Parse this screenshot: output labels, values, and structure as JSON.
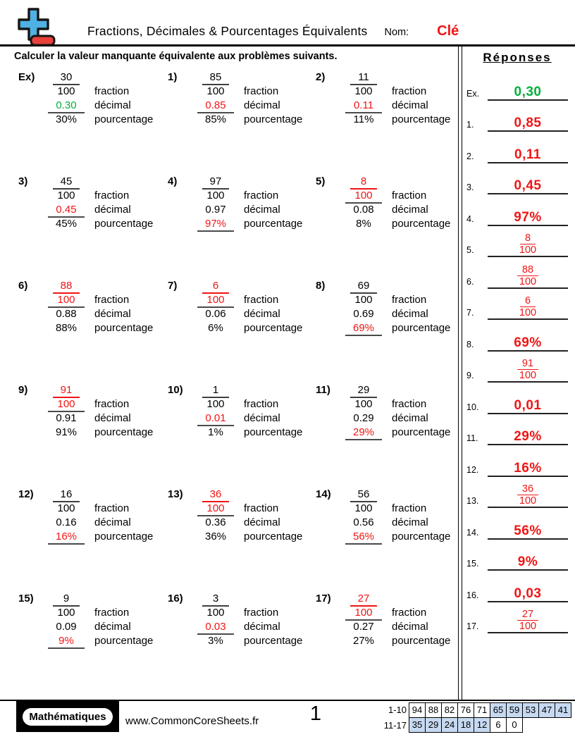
{
  "header": {
    "title": "Fractions, Décimales & Pourcentages Équivalents",
    "name_label": "Nom:",
    "name_value": "Clé"
  },
  "instruction": "Calculer la valeur manquante équivalente aux problèmes suivants.",
  "labels": {
    "fraction": "fraction",
    "decimal": "décimal",
    "percent": "pourcentage"
  },
  "colors": {
    "answer_red": "#f01515",
    "example_green": "#00b03a",
    "table_shade": "#c6d9f1",
    "logo_blue": "#4fb0e3",
    "logo_red": "#e8403a"
  },
  "problems": [
    {
      "label": "Ex)",
      "numerator": "30",
      "denominator": "100",
      "decimal": "0.30",
      "percent": "30%",
      "missing": "decimal",
      "answer_color": "green"
    },
    {
      "label": "1)",
      "numerator": "85",
      "denominator": "100",
      "decimal": "0.85",
      "percent": "85%",
      "missing": "decimal",
      "answer_color": "red"
    },
    {
      "label": "2)",
      "numerator": "11",
      "denominator": "100",
      "decimal": "0.11",
      "percent": "11%",
      "missing": "decimal",
      "answer_color": "red"
    },
    {
      "label": "3)",
      "numerator": "45",
      "denominator": "100",
      "decimal": "0.45",
      "percent": "45%",
      "missing": "decimal",
      "answer_color": "red"
    },
    {
      "label": "4)",
      "numerator": "97",
      "denominator": "100",
      "decimal": "0.97",
      "percent": "97%",
      "missing": "percent",
      "answer_color": "red"
    },
    {
      "label": "5)",
      "numerator": "8",
      "denominator": "100",
      "decimal": "0.08",
      "percent": "8%",
      "missing": "fraction",
      "answer_color": "red"
    },
    {
      "label": "6)",
      "numerator": "88",
      "denominator": "100",
      "decimal": "0.88",
      "percent": "88%",
      "missing": "fraction",
      "answer_color": "red"
    },
    {
      "label": "7)",
      "numerator": "6",
      "denominator": "100",
      "decimal": "0.06",
      "percent": "6%",
      "missing": "fraction",
      "answer_color": "red"
    },
    {
      "label": "8)",
      "numerator": "69",
      "denominator": "100",
      "decimal": "0.69",
      "percent": "69%",
      "missing": "percent",
      "answer_color": "red"
    },
    {
      "label": "9)",
      "numerator": "91",
      "denominator": "100",
      "decimal": "0.91",
      "percent": "91%",
      "missing": "fraction",
      "answer_color": "red"
    },
    {
      "label": "10)",
      "numerator": "1",
      "denominator": "100",
      "decimal": "0.01",
      "percent": "1%",
      "missing": "decimal",
      "answer_color": "red"
    },
    {
      "label": "11)",
      "numerator": "29",
      "denominator": "100",
      "decimal": "0.29",
      "percent": "29%",
      "missing": "percent",
      "answer_color": "red"
    },
    {
      "label": "12)",
      "numerator": "16",
      "denominator": "100",
      "decimal": "0.16",
      "percent": "16%",
      "missing": "percent",
      "answer_color": "red"
    },
    {
      "label": "13)",
      "numerator": "36",
      "denominator": "100",
      "decimal": "0.36",
      "percent": "36%",
      "missing": "fraction",
      "answer_color": "red"
    },
    {
      "label": "14)",
      "numerator": "56",
      "denominator": "100",
      "decimal": "0.56",
      "percent": "56%",
      "missing": "percent",
      "answer_color": "red"
    },
    {
      "label": "15)",
      "numerator": "9",
      "denominator": "100",
      "decimal": "0.09",
      "percent": "9%",
      "missing": "percent",
      "answer_color": "red"
    },
    {
      "label": "16)",
      "numerator": "3",
      "denominator": "100",
      "decimal": "0.03",
      "percent": "3%",
      "missing": "decimal",
      "answer_color": "red"
    },
    {
      "label": "17)",
      "numerator": "27",
      "denominator": "100",
      "decimal": "0.27",
      "percent": "27%",
      "missing": "fraction",
      "answer_color": "red"
    }
  ],
  "answers": {
    "heading": "Réponses",
    "items": [
      {
        "label": "Ex.",
        "type": "decimal",
        "value": "0,30",
        "color": "green"
      },
      {
        "label": "1.",
        "type": "decimal",
        "value": "0,85",
        "color": "red"
      },
      {
        "label": "2.",
        "type": "decimal",
        "value": "0,11",
        "color": "red"
      },
      {
        "label": "3.",
        "type": "decimal",
        "value": "0,45",
        "color": "red"
      },
      {
        "label": "4.",
        "type": "percent",
        "value": "97%",
        "color": "red"
      },
      {
        "label": "5.",
        "type": "fraction",
        "numerator": "8",
        "denominator": "100",
        "color": "red"
      },
      {
        "label": "6.",
        "type": "fraction",
        "numerator": "88",
        "denominator": "100",
        "color": "red"
      },
      {
        "label": "7.",
        "type": "fraction",
        "numerator": "6",
        "denominator": "100",
        "color": "red"
      },
      {
        "label": "8.",
        "type": "percent",
        "value": "69%",
        "color": "red"
      },
      {
        "label": "9.",
        "type": "fraction",
        "numerator": "91",
        "denominator": "100",
        "color": "red"
      },
      {
        "label": "10.",
        "type": "decimal",
        "value": "0,01",
        "color": "red"
      },
      {
        "label": "11.",
        "type": "percent",
        "value": "29%",
        "color": "red"
      },
      {
        "label": "12.",
        "type": "percent",
        "value": "16%",
        "color": "red"
      },
      {
        "label": "13.",
        "type": "fraction",
        "numerator": "36",
        "denominator": "100",
        "color": "red"
      },
      {
        "label": "14.",
        "type": "percent",
        "value": "56%",
        "color": "red"
      },
      {
        "label": "15.",
        "type": "percent",
        "value": "9%",
        "color": "red"
      },
      {
        "label": "16.",
        "type": "decimal",
        "value": "0,03",
        "color": "red"
      },
      {
        "label": "17.",
        "type": "fraction",
        "numerator": "27",
        "denominator": "100",
        "color": "red"
      }
    ]
  },
  "footer": {
    "brand": "Mathématiques",
    "website": "www.CommonCoreSheets.fr",
    "page_number": "1",
    "score_table": {
      "rows": [
        {
          "label": "1-10",
          "cells": [
            "94",
            "88",
            "82",
            "76",
            "71",
            "65",
            "59",
            "53",
            "47",
            "41"
          ],
          "shaded": [
            false,
            false,
            false,
            false,
            false,
            true,
            true,
            true,
            true,
            true
          ]
        },
        {
          "label": "11-17",
          "cells": [
            "35",
            "29",
            "24",
            "18",
            "12",
            "6",
            "0"
          ],
          "shaded": [
            true,
            true,
            true,
            true,
            true,
            false,
            false
          ]
        }
      ]
    }
  }
}
